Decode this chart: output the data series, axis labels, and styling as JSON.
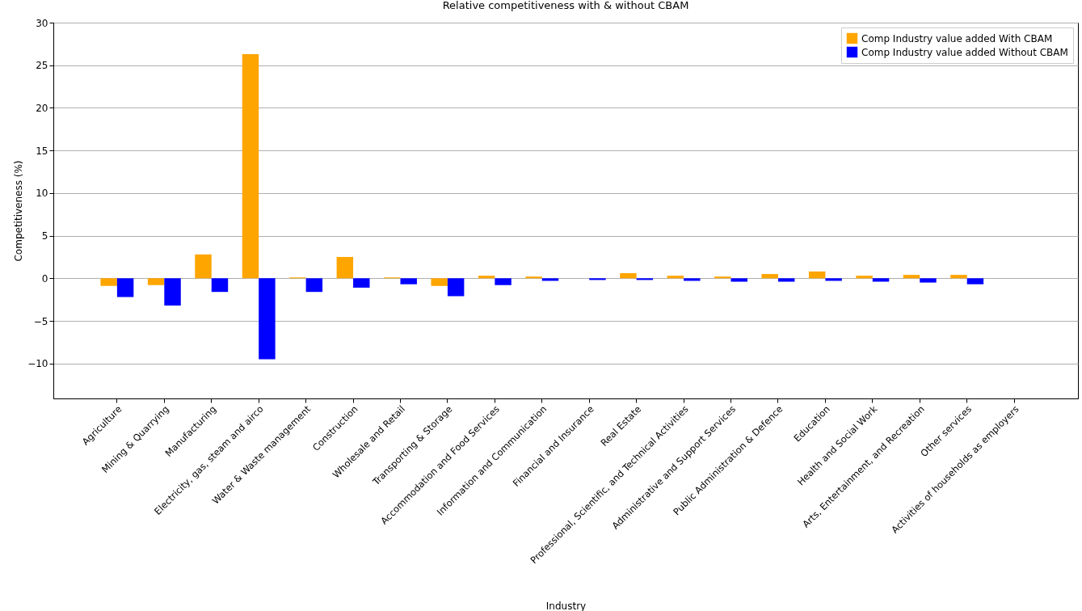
{
  "chart_data": {
    "type": "bar",
    "title": "Relative competitiveness with & without CBAM",
    "xlabel": "Industry",
    "ylabel": "Competitiveness (%)",
    "categories": [
      "Agriculture",
      "Mining & Quarrying",
      "Manufacturing",
      "Electricity, gas, steam and airco",
      "Water & Waste management",
      "Construction",
      "Wholesale and Retail",
      "Transporting & Storage",
      "Accommodation and Food Services",
      "Information and Communication",
      "Financial and Insurance",
      "Real Estate",
      "Professional, Scientific, and Technical Activities",
      "Administrative and Support Services",
      "Public Administration & Defence",
      "Education",
      "Health and Social Work",
      "Arts, Entertainment, and Recreation",
      "Other services",
      "Activities of households as employers"
    ],
    "series": [
      {
        "name": "Comp Industry value added With CBAM",
        "color": "#ffa500",
        "values": [
          -0.9,
          -0.8,
          2.8,
          26.3,
          0.1,
          2.5,
          0.1,
          -0.9,
          0.3,
          0.2,
          0,
          0.6,
          0.3,
          0.2,
          0.5,
          0.8,
          0.3,
          0.4,
          0.4,
          0
        ]
      },
      {
        "name": "Comp Industry value added Without CBAM",
        "color": "#0000ff",
        "values": [
          -2.2,
          -3.2,
          -1.6,
          -9.5,
          -1.6,
          -1.1,
          -0.7,
          -2.1,
          -0.8,
          -0.3,
          -0.2,
          -0.2,
          -0.3,
          -0.4,
          -0.4,
          -0.3,
          -0.4,
          -0.5,
          -0.7,
          0
        ]
      }
    ],
    "ylim": [
      -14.1,
      30
    ],
    "yticks": [
      -10,
      -5,
      0,
      5,
      10,
      15,
      20,
      25,
      30
    ],
    "grid": "y",
    "legend": "top right"
  }
}
